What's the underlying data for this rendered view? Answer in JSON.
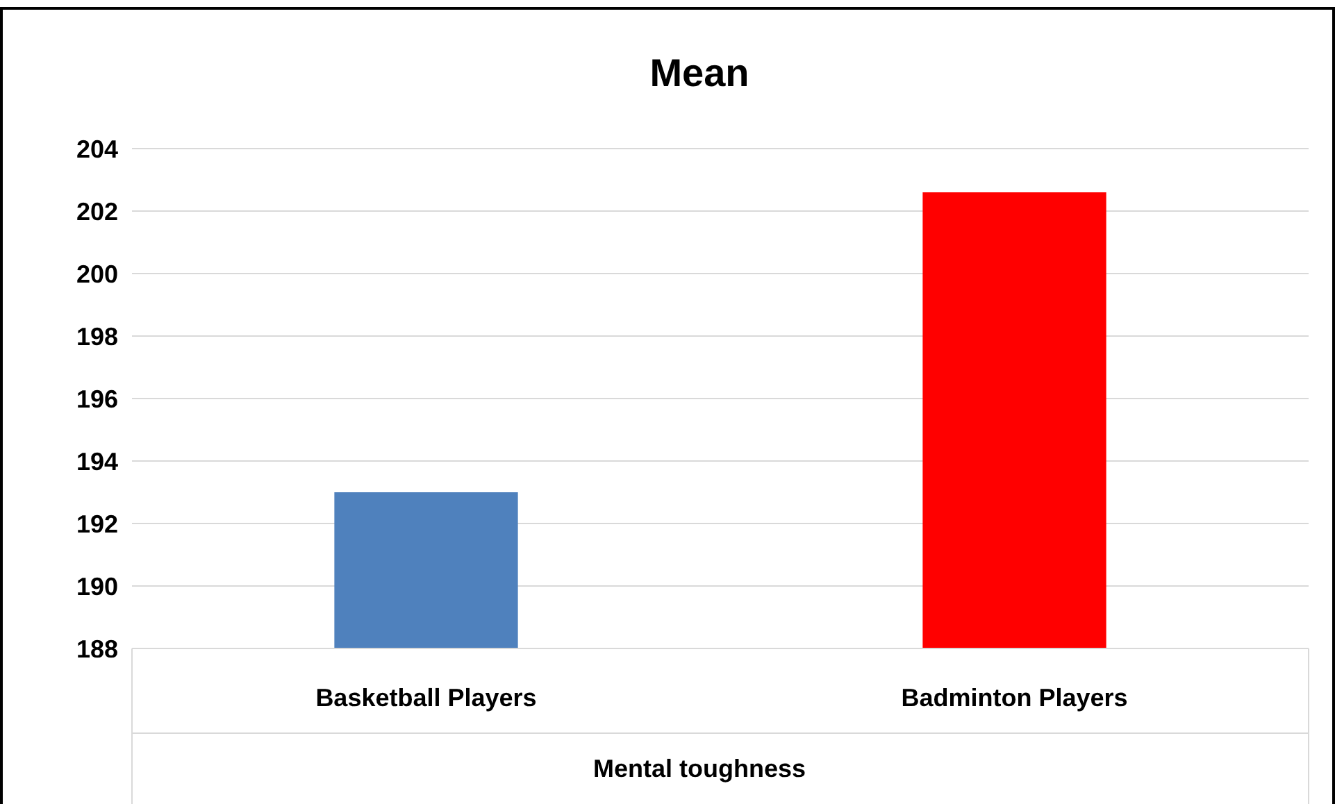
{
  "chart_data": {
    "type": "bar",
    "title": "Mean",
    "xlabel": "Mental toughness",
    "categories": [
      "Basketball Players",
      "Badminton Players"
    ],
    "values": [
      193,
      202.6
    ],
    "colors": [
      "#4f81bd",
      "#ff0000"
    ],
    "ylim": [
      188,
      204
    ],
    "yticks": [
      188,
      190,
      192,
      194,
      196,
      198,
      200,
      202,
      204
    ],
    "grid": "y"
  }
}
